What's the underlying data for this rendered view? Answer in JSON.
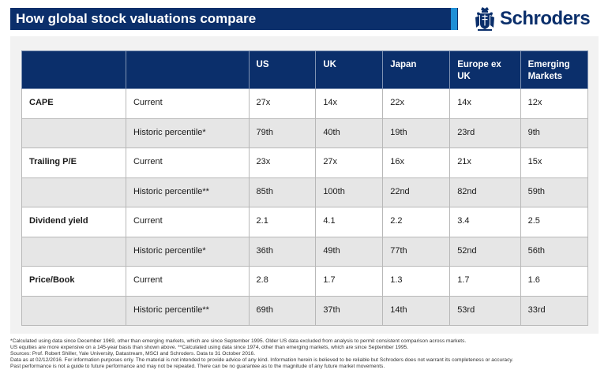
{
  "title": "How global stock valuations compare",
  "brand": {
    "name": "Schroders",
    "crest_icon": "schroders-crest-icon",
    "color": "#0b2f6b"
  },
  "colors": {
    "header_navy": "#0b2f6b",
    "accent_blue": "#1f8fd6",
    "row_alt": "#e6e6e6",
    "panel": "#f2f2f2"
  },
  "table": {
    "columns": [
      "US",
      "UK",
      "Japan",
      "Europe ex UK",
      "Emerging Markets"
    ],
    "rows": [
      {
        "metric": "CAPE",
        "type": "Current",
        "values": [
          "27x",
          "14x",
          "22x",
          "14x",
          "12x"
        ]
      },
      {
        "metric": "",
        "type": "Historic percentile*",
        "values": [
          "79th",
          "40th",
          "19th",
          "23rd",
          "9th"
        ]
      },
      {
        "metric": "Trailing P/E",
        "type": "Current",
        "values": [
          "23x",
          "27x",
          "16x",
          "21x",
          "15x"
        ]
      },
      {
        "metric": "",
        "type": "Historic percentile**",
        "values": [
          "85th",
          "100th",
          "22nd",
          "82nd",
          "59th"
        ]
      },
      {
        "metric": "Dividend yield",
        "type": "Current",
        "values": [
          "2.1",
          "4.1",
          "2.2",
          "3.4",
          "2.5"
        ]
      },
      {
        "metric": "",
        "type": "Historic percentile*",
        "values": [
          "36th",
          "49th",
          "77th",
          "52nd",
          "56th"
        ]
      },
      {
        "metric": "Price/Book",
        "type": "Current",
        "values": [
          "2.8",
          "1.7",
          "1.3",
          "1.7",
          "1.6"
        ]
      },
      {
        "metric": "",
        "type": "Historic percentile**",
        "values": [
          "69th",
          "37th",
          "14th",
          "53rd",
          "33rd"
        ]
      }
    ]
  },
  "footnotes": [
    "*Calculated using data since December 1969, other than emerging markets, which are since September 1995. Older US data excluded from analysis to permit consistent comparison across markets.",
    "US equities are more expensive on a 145-year basis than shown above. **Calculated using data since 1974, other than emerging markets, which are since September 1995.",
    "Sources: Prof. Robert Shiller, Yale University, Datastream, MSCI and Schroders. Data to 31 October 2016.",
    "Data as at 02/12/2016. For information purposes only. The material is not intended to provide advice of any kind. Information herein is believed to be reliable but Schroders does not warrant its completeness or accuracy.",
    "Past performance is not a guide to future performance and may not be repeated. There can be no guarantee as to the magnitude of any future market movements."
  ]
}
